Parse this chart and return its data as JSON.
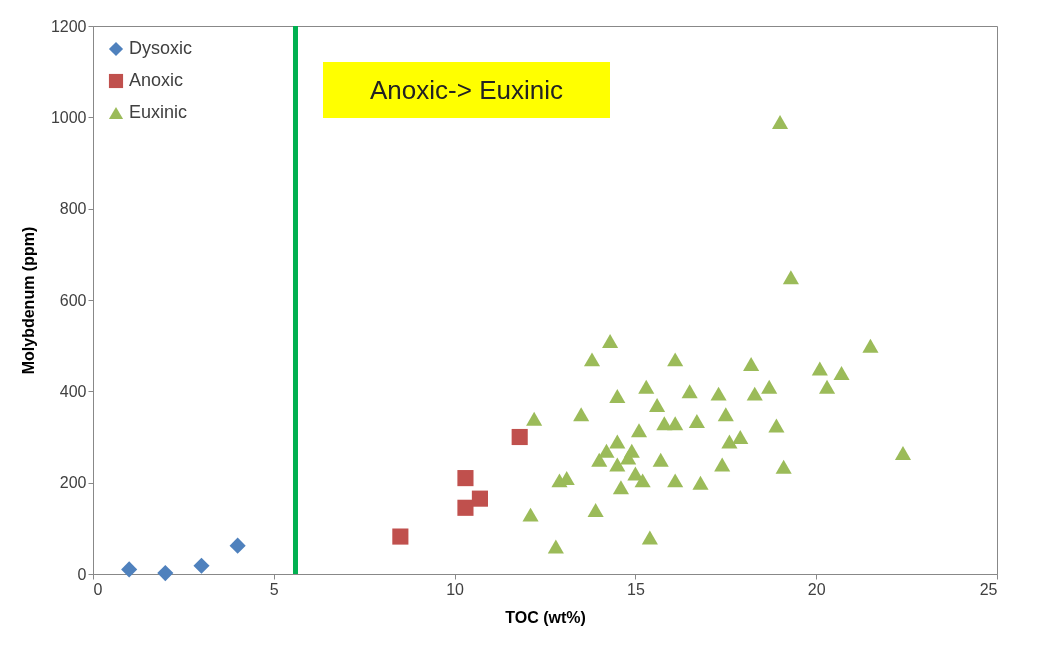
{
  "chart_data": {
    "type": "scatter",
    "xlabel": "TOC (wt%)",
    "ylabel": "Molybdenum (ppm)",
    "xlim": [
      0,
      25
    ],
    "xticks": [
      0,
      5,
      10,
      15,
      20,
      25
    ],
    "ylim": [
      0,
      1200
    ],
    "yticks": [
      0,
      200,
      400,
      600,
      800,
      1000,
      1200
    ],
    "grid": false,
    "legend": "top left",
    "series": [
      {
        "name": "Dysoxic",
        "color": "#4f81bd",
        "marker": "diamond",
        "x": [
          1,
          2,
          3,
          4
        ],
        "values": [
          10,
          2,
          18,
          62
        ]
      },
      {
        "name": "Anoxic",
        "color": "#c0504d",
        "marker": "square",
        "x": [
          8.5,
          10.3,
          10.3,
          10.7,
          11.8
        ],
        "values": [
          82,
          210,
          145,
          165,
          300
        ]
      },
      {
        "name": "Euxinic",
        "color": "#9bbb59",
        "marker": "triangle",
        "x": [
          12.2,
          12.1,
          12.8,
          12.9,
          13.1,
          13.5,
          13.8,
          13.9,
          14.0,
          14.3,
          14.2,
          14.5,
          14.5,
          14.5,
          14.6,
          14.8,
          15.0,
          14.9,
          15.1,
          15.2,
          15.3,
          15.4,
          15.6,
          15.7,
          15.8,
          16.1,
          16.1,
          16.1,
          16.5,
          16.7,
          16.8,
          17.3,
          17.4,
          17.5,
          17.6,
          17.9,
          18.2,
          18.3,
          18.7,
          18.9,
          19.0,
          19.1,
          19.3,
          20.1,
          20.3,
          20.7,
          21.5,
          22.4
        ],
        "values": [
          340,
          130,
          60,
          205,
          210,
          350,
          470,
          140,
          250,
          510,
          270,
          390,
          290,
          240,
          190,
          255,
          220,
          270,
          315,
          205,
          410,
          80,
          370,
          250,
          330,
          470,
          330,
          205,
          400,
          335,
          200,
          395,
          240,
          350,
          290,
          300,
          460,
          395,
          410,
          325,
          990,
          235,
          650,
          450,
          410,
          440,
          500,
          265
        ]
      }
    ],
    "ref_lines": [
      {
        "axis": "x",
        "value": 5.6,
        "color": "#00b050"
      }
    ],
    "annotations": [
      "Anoxic-> Euxinic"
    ]
  }
}
